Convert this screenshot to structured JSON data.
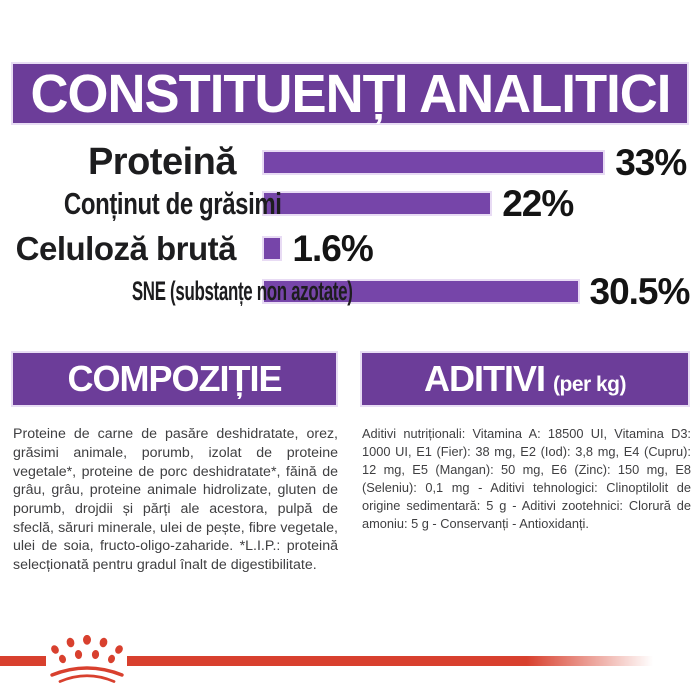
{
  "header": {
    "title": "CONSTITUENȚI ANALITICI",
    "band_color": "#6c3d99",
    "text_color": "#ffffff"
  },
  "chart_data": {
    "type": "bar",
    "orientation": "horizontal",
    "unit": "%",
    "categories": [
      "Proteină",
      "Conținut de grăsimi",
      "Celuloză brută",
      "SNE (substanțe non azotate)"
    ],
    "values": [
      33,
      22,
      1.6,
      30.5
    ],
    "value_labels": [
      "33%",
      "22%",
      "1.6%",
      "30.5%"
    ],
    "bar_color": "#7645a9",
    "label_color": "#1d1d1f",
    "xlim": [
      0,
      34.3
    ],
    "grid": false,
    "legend": false
  },
  "sections": {
    "composition": {
      "title": "COMPOZIȚIE",
      "body": "Proteine de carne de pasăre deshidratate, orez, grăsimi animale, porumb, izolat de proteine vegetale*, proteine de porc deshidratate*, făină de grâu, grâu, proteine animale hidrolizate, gluten de porumb, drojdii și părți ale acestora, pulpă de sfeclă, săruri minerale, ulei de pește, fibre vegetale, ulei de soia, fructo-oligo-zaharide. *L.I.P.: proteină selecționată pentru gradul înalt de digestibilitate."
    },
    "additives": {
      "title": "ADITIVI",
      "title_suffix": "(per kg)",
      "body": "Aditivi nutriționali: Vitamina A: 18500 UI, Vitamina D3: 1000 UI, E1 (Fier): 38 mg, E2 (Iod): 3,8 mg, E4 (Cupru): 12 mg, E5 (Mangan): 50 mg, E6 (Zinc): 150 mg, E8 (Seleniu): 0,1 mg - Aditivi tehnologici: Clinoptilolit de origine sedimentară: 5 g - Aditivi zootehnici: Clorură de amoniu: 5 g - Conservanți - Antioxidanți."
    }
  },
  "footer": {
    "logo_icon": "royal-canin-crown-logo",
    "line_color": "#d8402e"
  }
}
